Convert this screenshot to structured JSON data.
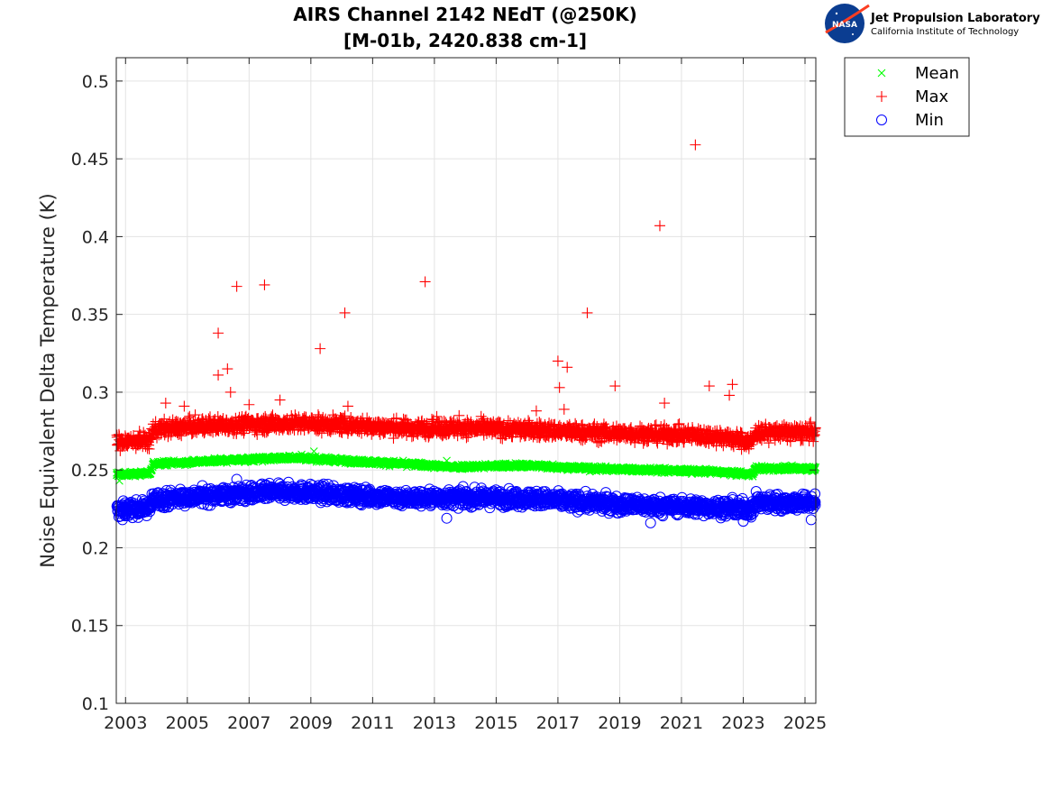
{
  "chart_data": {
    "type": "scatter",
    "title": "AIRS Channel 2142 NEdT (@250K)",
    "subtitle": "[M-01b, 2420.838 cm-1]",
    "xlabel": "",
    "ylabel": "Noise Equivalent Delta Temperature (K)",
    "xlim": [
      2002.7,
      2025.35
    ],
    "ylim": [
      0.1,
      0.515
    ],
    "xticks": [
      2003,
      2005,
      2007,
      2009,
      2011,
      2013,
      2015,
      2017,
      2019,
      2021,
      2023,
      2025
    ],
    "xtick_labels": [
      "2003",
      "2005",
      "2007",
      "2009",
      "2011",
      "2013",
      "2015",
      "2017",
      "2019",
      "2021",
      "2023",
      "2025"
    ],
    "yticks": [
      0.1,
      0.15,
      0.2,
      0.25,
      0.3,
      0.35,
      0.4,
      0.45,
      0.5
    ],
    "ytick_labels": [
      "0.1",
      "0.15",
      "0.2",
      "0.25",
      "0.3",
      "0.35",
      "0.4",
      "0.45",
      "0.5"
    ],
    "grid": true,
    "legend_position": "outside-top-right",
    "series": [
      {
        "name": "Mean",
        "marker": "x",
        "color": "#00ff00",
        "trend": [
          [
            2002.7,
            0.247
          ],
          [
            2003.8,
            0.248
          ],
          [
            2003.9,
            0.254
          ],
          [
            2006,
            0.256
          ],
          [
            2008.5,
            0.258
          ],
          [
            2010,
            0.256
          ],
          [
            2012,
            0.254
          ],
          [
            2013.5,
            0.252
          ],
          [
            2016,
            0.253
          ],
          [
            2018,
            0.251
          ],
          [
            2020,
            0.25
          ],
          [
            2022,
            0.249
          ],
          [
            2023.3,
            0.247
          ],
          [
            2023.4,
            0.251
          ],
          [
            2025.35,
            0.251
          ]
        ],
        "spread": 0.0015,
        "outliers": [
          [
            2002.8,
            0.243
          ],
          [
            2008.7,
            0.26
          ],
          [
            2009.1,
            0.262
          ],
          [
            2009.8,
            0.258
          ],
          [
            2013.4,
            0.256
          ]
        ]
      },
      {
        "name": "Max",
        "marker": "+",
        "color": "#ff0000",
        "trend": [
          [
            2002.7,
            0.268
          ],
          [
            2003.8,
            0.269
          ],
          [
            2003.9,
            0.276
          ],
          [
            2006,
            0.279
          ],
          [
            2008.5,
            0.28
          ],
          [
            2010,
            0.279
          ],
          [
            2012,
            0.277
          ],
          [
            2014,
            0.277
          ],
          [
            2016,
            0.276
          ],
          [
            2018,
            0.274
          ],
          [
            2020,
            0.273
          ],
          [
            2022,
            0.272
          ],
          [
            2023.3,
            0.268
          ],
          [
            2023.4,
            0.274
          ],
          [
            2025.35,
            0.274
          ]
        ],
        "spread": 0.005,
        "outliers": [
          [
            2006.0,
            0.338
          ],
          [
            2006.0,
            0.311
          ],
          [
            2006.3,
            0.315
          ],
          [
            2006.4,
            0.3
          ],
          [
            2006.6,
            0.368
          ],
          [
            2007.5,
            0.369
          ],
          [
            2008.0,
            0.295
          ],
          [
            2009.3,
            0.328
          ],
          [
            2010.1,
            0.351
          ],
          [
            2010.2,
            0.291
          ],
          [
            2012.7,
            0.371
          ],
          [
            2017.0,
            0.32
          ],
          [
            2017.05,
            0.303
          ],
          [
            2017.3,
            0.316
          ],
          [
            2017.95,
            0.351
          ],
          [
            2018.85,
            0.304
          ],
          [
            2020.3,
            0.407
          ],
          [
            2020.45,
            0.293
          ],
          [
            2021.45,
            0.459
          ],
          [
            2021.9,
            0.304
          ],
          [
            2022.55,
            0.298
          ],
          [
            2022.65,
            0.305
          ],
          [
            2004.3,
            0.293
          ],
          [
            2004.9,
            0.291
          ],
          [
            2007.0,
            0.292
          ],
          [
            2013.8,
            0.285
          ],
          [
            2016.3,
            0.288
          ],
          [
            2017.2,
            0.289
          ]
        ]
      },
      {
        "name": "Min",
        "marker": "o",
        "color": "#0000ff",
        "trend": [
          [
            2002.7,
            0.224
          ],
          [
            2003.8,
            0.226
          ],
          [
            2003.9,
            0.231
          ],
          [
            2006,
            0.234
          ],
          [
            2008.5,
            0.236
          ],
          [
            2010,
            0.234
          ],
          [
            2012,
            0.232
          ],
          [
            2014,
            0.232
          ],
          [
            2016,
            0.232
          ],
          [
            2018,
            0.229
          ],
          [
            2020,
            0.227
          ],
          [
            2022,
            0.226
          ],
          [
            2023.3,
            0.225
          ],
          [
            2023.4,
            0.229
          ],
          [
            2025.35,
            0.229
          ]
        ],
        "spread": 0.005,
        "outliers": [
          [
            2006.6,
            0.244
          ],
          [
            2013.4,
            0.219
          ],
          [
            2020.0,
            0.216
          ],
          [
            2002.9,
            0.218
          ],
          [
            2023.0,
            0.217
          ],
          [
            2025.2,
            0.218
          ]
        ]
      }
    ],
    "legend": [
      {
        "label": "Mean",
        "marker": "x",
        "color": "#00ff00"
      },
      {
        "label": "Max",
        "marker": "+",
        "color": "#ff0000"
      },
      {
        "label": "Min",
        "marker": "o",
        "color": "#0000ff"
      }
    ]
  },
  "logo": {
    "agency": "NASA",
    "lab_name": "Jet Propulsion Laboratory",
    "institution": "California Institute of Technology"
  }
}
